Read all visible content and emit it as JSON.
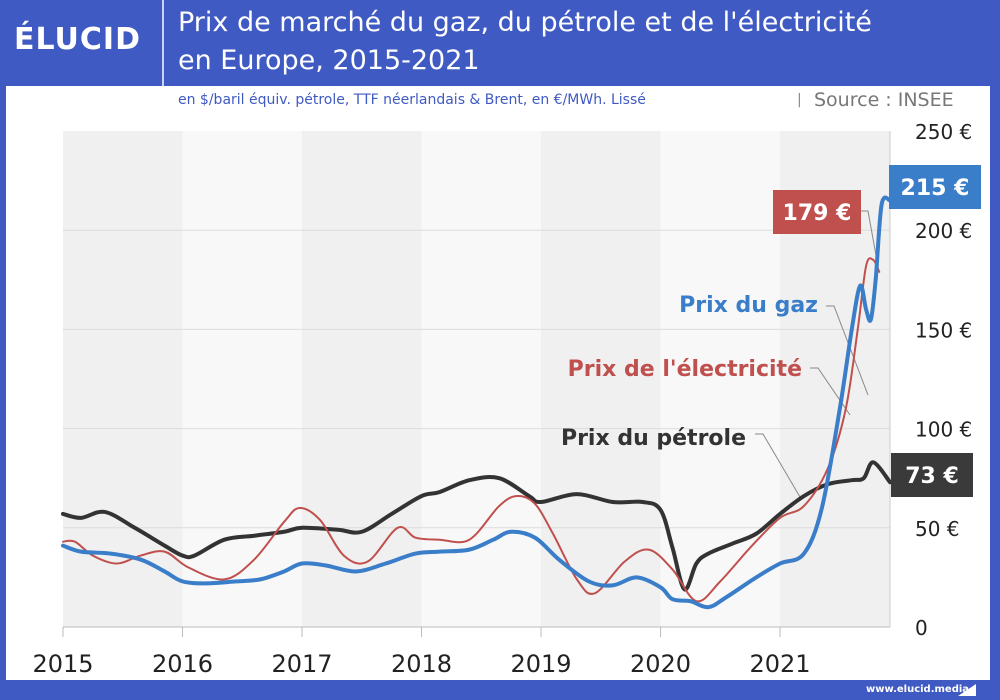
{
  "header": {
    "logo": "ÉLUCID",
    "title_line1": "Prix de marché du gaz, du pétrole et de l'électricité",
    "title_line2": "en Europe, 2015-2021"
  },
  "subtitle": "en $/baril équiv. pétrole, TTF néerlandais & Brent, en €/MWh. Lissé",
  "separator": "|",
  "source": "Source : INSEE",
  "footer": {
    "url": "www.elucid.media"
  },
  "chart_data": {
    "type": "line",
    "title": "Prix de marché du gaz, du pétrole et de l'électricité en Europe, 2015-2021",
    "subtitle": "en $/baril équiv. pétrole, TTF néerlandais & Brent, en €/MWh. Lissé",
    "xlabel": "",
    "ylabel": "",
    "xlim": [
      2015,
      2021.92
    ],
    "ylim": [
      0,
      250
    ],
    "x_ticks": [
      "2015",
      "2016",
      "2017",
      "2018",
      "2019",
      "2020",
      "2021"
    ],
    "x_tick_values": [
      2015,
      2016,
      2017,
      2018,
      2019,
      2020,
      2021
    ],
    "y_ticks": [
      "0",
      "50 €",
      "100 €",
      "150 €",
      "200 €",
      "250 €"
    ],
    "y_tick_values": [
      0,
      50,
      100,
      150,
      200,
      250
    ],
    "grid": true,
    "series": [
      {
        "name": "Prix du pétrole",
        "color": "#333333",
        "end_label": "73 €",
        "x": [
          2015,
          2015.15,
          2015.35,
          2015.6,
          2015.85,
          2016.0,
          2016.1,
          2016.35,
          2016.6,
          2016.85,
          2017.0,
          2017.3,
          2017.5,
          2017.75,
          2018.0,
          2018.15,
          2018.4,
          2018.65,
          2018.9,
          2019.0,
          2019.3,
          2019.6,
          2019.85,
          2020.0,
          2020.1,
          2020.2,
          2020.3,
          2020.4,
          2020.6,
          2020.8,
          2021.0,
          2021.2,
          2021.4,
          2021.6,
          2021.7,
          2021.78,
          2021.92
        ],
        "values": [
          57,
          55,
          58,
          50,
          41,
          36,
          36,
          44,
          46,
          48,
          50,
          49,
          48,
          57,
          66,
          68,
          74,
          75,
          66,
          63,
          67,
          63,
          63,
          59,
          40,
          19,
          32,
          37,
          42,
          47,
          57,
          66,
          72,
          74,
          75,
          83,
          73
        ]
      },
      {
        "name": "Prix de l'électricité",
        "color": "#c0504d",
        "end_label": "179 €",
        "x": [
          2015,
          2015.1,
          2015.25,
          2015.45,
          2015.65,
          2015.85,
          2016.05,
          2016.35,
          2016.6,
          2016.85,
          2016.98,
          2017.15,
          2017.35,
          2017.55,
          2017.8,
          2017.95,
          2018.15,
          2018.4,
          2018.65,
          2018.8,
          2018.95,
          2019.1,
          2019.3,
          2019.45,
          2019.7,
          2019.9,
          2020.1,
          2020.3,
          2020.5,
          2020.75,
          2021.0,
          2021.2,
          2021.4,
          2021.55,
          2021.65,
          2021.72,
          2021.78,
          2021.83
        ],
        "values": [
          43,
          43,
          36,
          32,
          36,
          38,
          30,
          24,
          34,
          53,
          60,
          54,
          36,
          33,
          50,
          45,
          44,
          44,
          61,
          66,
          62,
          47,
          24,
          17,
          33,
          39,
          29,
          13,
          23,
          40,
          55,
          61,
          80,
          110,
          150,
          182,
          185,
          179
        ]
      },
      {
        "name": "Prix du gaz",
        "color": "#3a7dc9",
        "end_label": "215 €",
        "x": [
          2015,
          2015.15,
          2015.4,
          2015.65,
          2015.85,
          2016.0,
          2016.2,
          2016.45,
          2016.65,
          2016.85,
          2017.0,
          2017.2,
          2017.45,
          2017.7,
          2017.95,
          2018.15,
          2018.4,
          2018.6,
          2018.75,
          2018.95,
          2019.15,
          2019.4,
          2019.6,
          2019.8,
          2020.0,
          2020.1,
          2020.25,
          2020.4,
          2020.55,
          2020.8,
          2021.0,
          2021.2,
          2021.35,
          2021.5,
          2021.6,
          2021.67,
          2021.72,
          2021.76,
          2021.8,
          2021.85,
          2021.92
        ],
        "values": [
          41,
          38,
          37,
          34,
          28,
          23,
          22,
          23,
          24,
          28,
          32,
          31,
          28,
          32,
          37,
          38,
          39,
          44,
          48,
          45,
          34,
          23,
          21,
          25,
          20,
          14,
          13,
          10,
          15,
          25,
          32,
          37,
          60,
          110,
          150,
          172,
          160,
          155,
          175,
          213,
          215
        ]
      }
    ],
    "annotations": [
      "Prix du gaz",
      "Prix de l'électricité",
      "Prix du pétrole",
      "179 €",
      "215 €",
      "73 €"
    ],
    "legend": "inline labels, center-right"
  }
}
